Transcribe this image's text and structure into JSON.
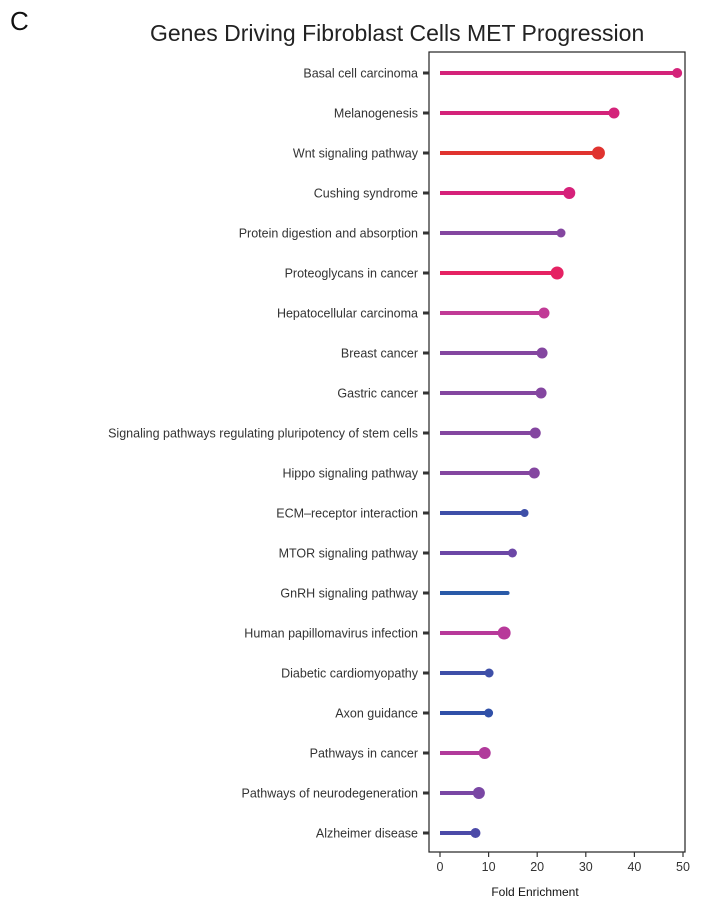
{
  "panel_letter": "C",
  "chart_data": {
    "type": "lollipop",
    "title": "Genes Driving Fibroblast Cells MET Progression",
    "xlabel": "Fold Enrichment",
    "xlim": [
      -2,
      51
    ],
    "xticks": [
      0,
      10,
      20,
      30,
      40,
      50
    ],
    "categories": [
      "Basal cell carcinoma",
      "Melanogenesis",
      "Wnt signaling pathway",
      "Cushing syndrome",
      "Protein digestion and absorption",
      "Proteoglycans in cancer",
      "Hepatocellular carcinoma",
      "Breast cancer",
      "Gastric cancer",
      "Signaling pathways regulating pluripotency of stem cells",
      "Hippo signaling pathway",
      "ECM–receptor interaction",
      "MTOR signaling pathway",
      "GnRH signaling pathway",
      "Human papillomavirus infection",
      "Diabetic cardiomyopathy",
      "Axon guidance",
      "Pathways in cancer",
      "Pathways of neurodegeneration",
      "Alzheimer disease"
    ],
    "values": [
      48.8,
      35.8,
      32.6,
      26.6,
      24.9,
      24.1,
      21.4,
      21.0,
      20.8,
      19.6,
      19.4,
      17.4,
      14.9,
      13.9,
      13.2,
      10.1,
      10.0,
      9.2,
      8.0,
      7.3
    ],
    "colors": [
      "#d4237a",
      "#d4237a",
      "#e0332f",
      "#d6217a",
      "#8446a0",
      "#e52263",
      "#c13a96",
      "#8446a0",
      "#8446a0",
      "#8446a0",
      "#8446a0",
      "#3e4fa8",
      "#6c47a6",
      "#2a5aa8",
      "#b8399a",
      "#3e4fa8",
      "#3050a8",
      "#b13a9b",
      "#7a47a4",
      "#4c4aa8"
    ],
    "dot_sizes": [
      5,
      5.5,
      6.5,
      6,
      4.5,
      6.5,
      5.5,
      5.5,
      5.5,
      5.5,
      5.5,
      4,
      4.5,
      2,
      6.5,
      4.5,
      4.5,
      6,
      6,
      5
    ]
  }
}
